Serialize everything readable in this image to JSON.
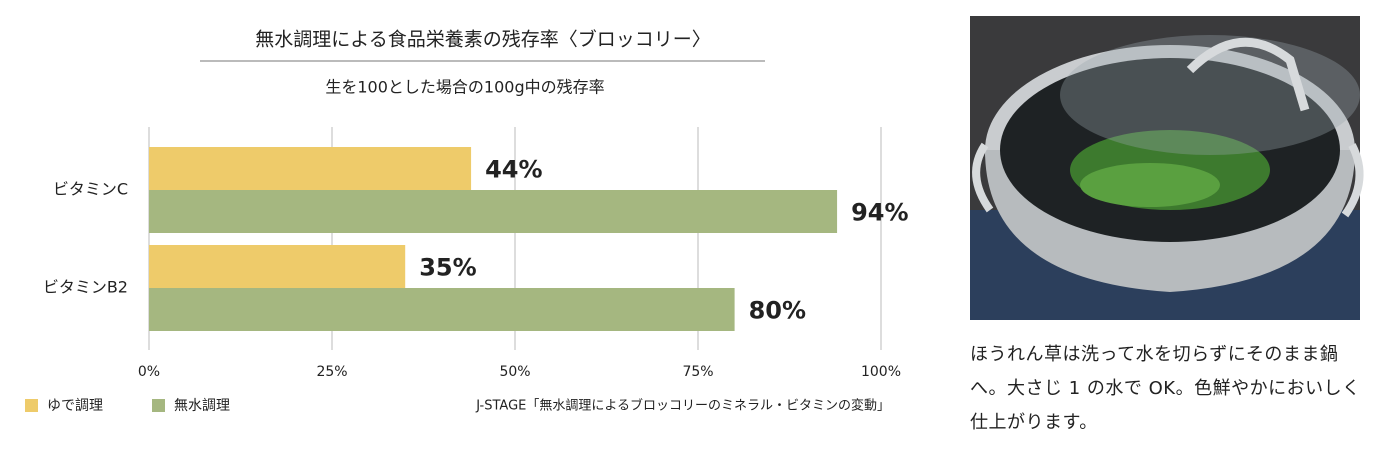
{
  "chart_data": {
    "type": "bar",
    "orientation": "horizontal",
    "title": "無水調理による食品栄養素の残存率〈ブロッコリー〉",
    "subtitle": "生を100とした場合の100g中の残存率",
    "categories": [
      "ビタミンC",
      "ビタミンB2"
    ],
    "series": [
      {
        "name": "ゆで調理",
        "color": "#eecb6a",
        "values": [
          44,
          35
        ],
        "value_labels": [
          "44%",
          "35%"
        ]
      },
      {
        "name": "無水調理",
        "color": "#a5b780",
        "values": [
          94,
          80
        ],
        "value_labels": [
          "94%",
          "80%"
        ]
      }
    ],
    "xlim": [
      0,
      100
    ],
    "xticks": [
      {
        "value": 0,
        "label": "0%"
      },
      {
        "value": 25,
        "label": "25%"
      },
      {
        "value": 50,
        "label": "50%"
      },
      {
        "value": 75,
        "label": "75%"
      },
      {
        "value": 100,
        "label": "100%"
      }
    ],
    "grid": true,
    "source": "J-STAGE「無水調理によるブロッコリーのミネラル・ビタミンの変動」"
  },
  "caption": "ほうれん草は洗って水を切らずにそのまま鍋へ。大さじ 1 の水で OK。色鮮やかにおいしく仕上がります。"
}
